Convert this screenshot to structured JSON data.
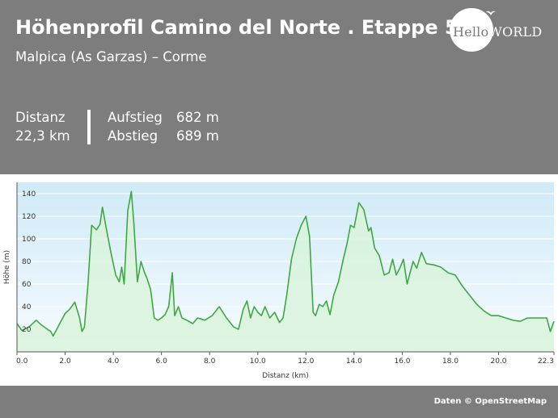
{
  "header": {
    "title": "Höhenprofil Camino del Norte . Etappe 54",
    "subtitle": "Malpica (As Garzas) – Corme",
    "stats": {
      "distance_label": "Distanz",
      "distance_value": "22,3 km",
      "ascent_label": "Aufstieg",
      "ascent_value": "682 m",
      "descent_label": "Abstieg",
      "descent_value": "689 m"
    }
  },
  "logo": {
    "part1": "Hello",
    "part2": "WORLD"
  },
  "footer": {
    "credit": "Daten © OpenStreetMap"
  },
  "colors": {
    "header_bg": "#7d7d7d",
    "line": "#3fa842",
    "fill": "#d9f3dc",
    "plot_bg_top": "#cfeaf6",
    "plot_bg_bottom": "#f6fbff"
  },
  "chart_data": {
    "type": "area",
    "title": "",
    "xlabel": "Distanz (km)",
    "ylabel": "Höhe (m)",
    "xlim": [
      0,
      22.3
    ],
    "ylim": [
      0,
      150
    ],
    "x_ticks": [
      "0.0",
      "2.0",
      "4.0",
      "6.0",
      "8.0",
      "10.0",
      "12.0",
      "14.0",
      "16.0",
      "18.0",
      "20.0",
      "22.3"
    ],
    "x_tick_values": [
      0,
      2,
      4,
      6,
      8,
      10,
      12,
      14,
      16,
      18,
      20,
      22.3
    ],
    "y_ticks": [
      20,
      40,
      60,
      80,
      100,
      120,
      140
    ],
    "grid": true,
    "series": [
      {
        "x": [
          0.0,
          0.2,
          0.5,
          0.8,
          1.0,
          1.2,
          1.4,
          1.5,
          1.7,
          2.0,
          2.2,
          2.4,
          2.6,
          2.7,
          2.8,
          2.95,
          3.1,
          3.3,
          3.45,
          3.55,
          3.7,
          3.9,
          4.1,
          4.25,
          4.35,
          4.45,
          4.6,
          4.75,
          4.85,
          5.0,
          5.15,
          5.3,
          5.4,
          5.55,
          5.7,
          5.85,
          6.0,
          6.15,
          6.3,
          6.45,
          6.55,
          6.7,
          6.85,
          7.05,
          7.3,
          7.5,
          7.8,
          8.1,
          8.4,
          8.7,
          9.0,
          9.2,
          9.4,
          9.55,
          9.7,
          9.85,
          10.0,
          10.15,
          10.3,
          10.5,
          10.7,
          10.9,
          11.05,
          11.2,
          11.4,
          11.6,
          11.8,
          12.0,
          12.15,
          12.3,
          12.4,
          12.55,
          12.7,
          12.85,
          13.0,
          13.15,
          13.35,
          13.55,
          13.7,
          13.85,
          14.0,
          14.2,
          14.4,
          14.6,
          14.7,
          14.85,
          15.05,
          15.25,
          15.45,
          15.6,
          15.75,
          15.9,
          16.05,
          16.2,
          16.45,
          16.6,
          16.8,
          17.0,
          17.3,
          17.6,
          17.9,
          18.2,
          18.5,
          18.8,
          19.1,
          19.4,
          19.7,
          20.0,
          20.3,
          20.6,
          20.9,
          21.2,
          21.5,
          21.8,
          22.0,
          22.15,
          22.3
        ],
        "y": [
          25,
          19,
          22,
          28,
          24,
          21,
          18,
          14,
          22,
          34,
          38,
          44,
          30,
          18,
          22,
          60,
          112,
          108,
          113,
          128,
          110,
          88,
          68,
          62,
          75,
          60,
          125,
          142,
          115,
          62,
          80,
          70,
          65,
          55,
          30,
          28,
          30,
          33,
          40,
          70,
          32,
          40,
          30,
          28,
          25,
          30,
          28,
          32,
          40,
          30,
          22,
          20,
          38,
          45,
          30,
          40,
          35,
          32,
          40,
          30,
          35,
          26,
          30,
          50,
          82,
          100,
          112,
          120,
          102,
          35,
          32,
          42,
          40,
          45,
          33,
          50,
          62,
          82,
          95,
          112,
          110,
          132,
          126,
          107,
          110,
          92,
          85,
          68,
          70,
          82,
          68,
          74,
          82,
          60,
          80,
          74,
          88,
          78,
          77,
          75,
          70,
          68,
          58,
          50,
          42,
          36,
          32,
          32,
          30,
          28,
          27,
          30,
          30,
          30,
          30,
          18,
          27
        ]
      }
    ]
  }
}
